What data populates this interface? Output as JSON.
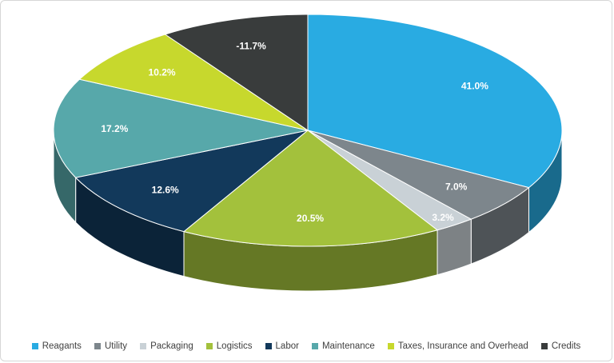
{
  "chart": {
    "background": "#FFFFFF",
    "border_color": "#D6D6D6",
    "label_text_color": "#FFFFFF",
    "legend_text_color": "#404040"
  },
  "chart_data": {
    "type": "pie",
    "style": "3d",
    "title": "",
    "legend_position": "bottom",
    "categories": [
      "Reagants",
      "Utility",
      "Packaging",
      "Logistics",
      "Labor",
      "Maintenance",
      "Taxes, Insurance and Overhead",
      "Credits"
    ],
    "values": [
      41.0,
      7.0,
      3.2,
      20.5,
      12.6,
      17.2,
      10.2,
      -11.7
    ],
    "labels": [
      "41.0%",
      "7.0%",
      "3.2%",
      "20.5%",
      "12.6%",
      "17.2%",
      "10.2%",
      "-11.7%"
    ],
    "colors": [
      "#29ABE2",
      "#7D868C",
      "#C9D1D6",
      "#A3C13C",
      "#12395B",
      "#57A8AA",
      "#C7D82D",
      "#393C3C"
    ],
    "angle_basis": "absolute_values",
    "start_angle_deg": 0,
    "direction": "clockwise"
  }
}
